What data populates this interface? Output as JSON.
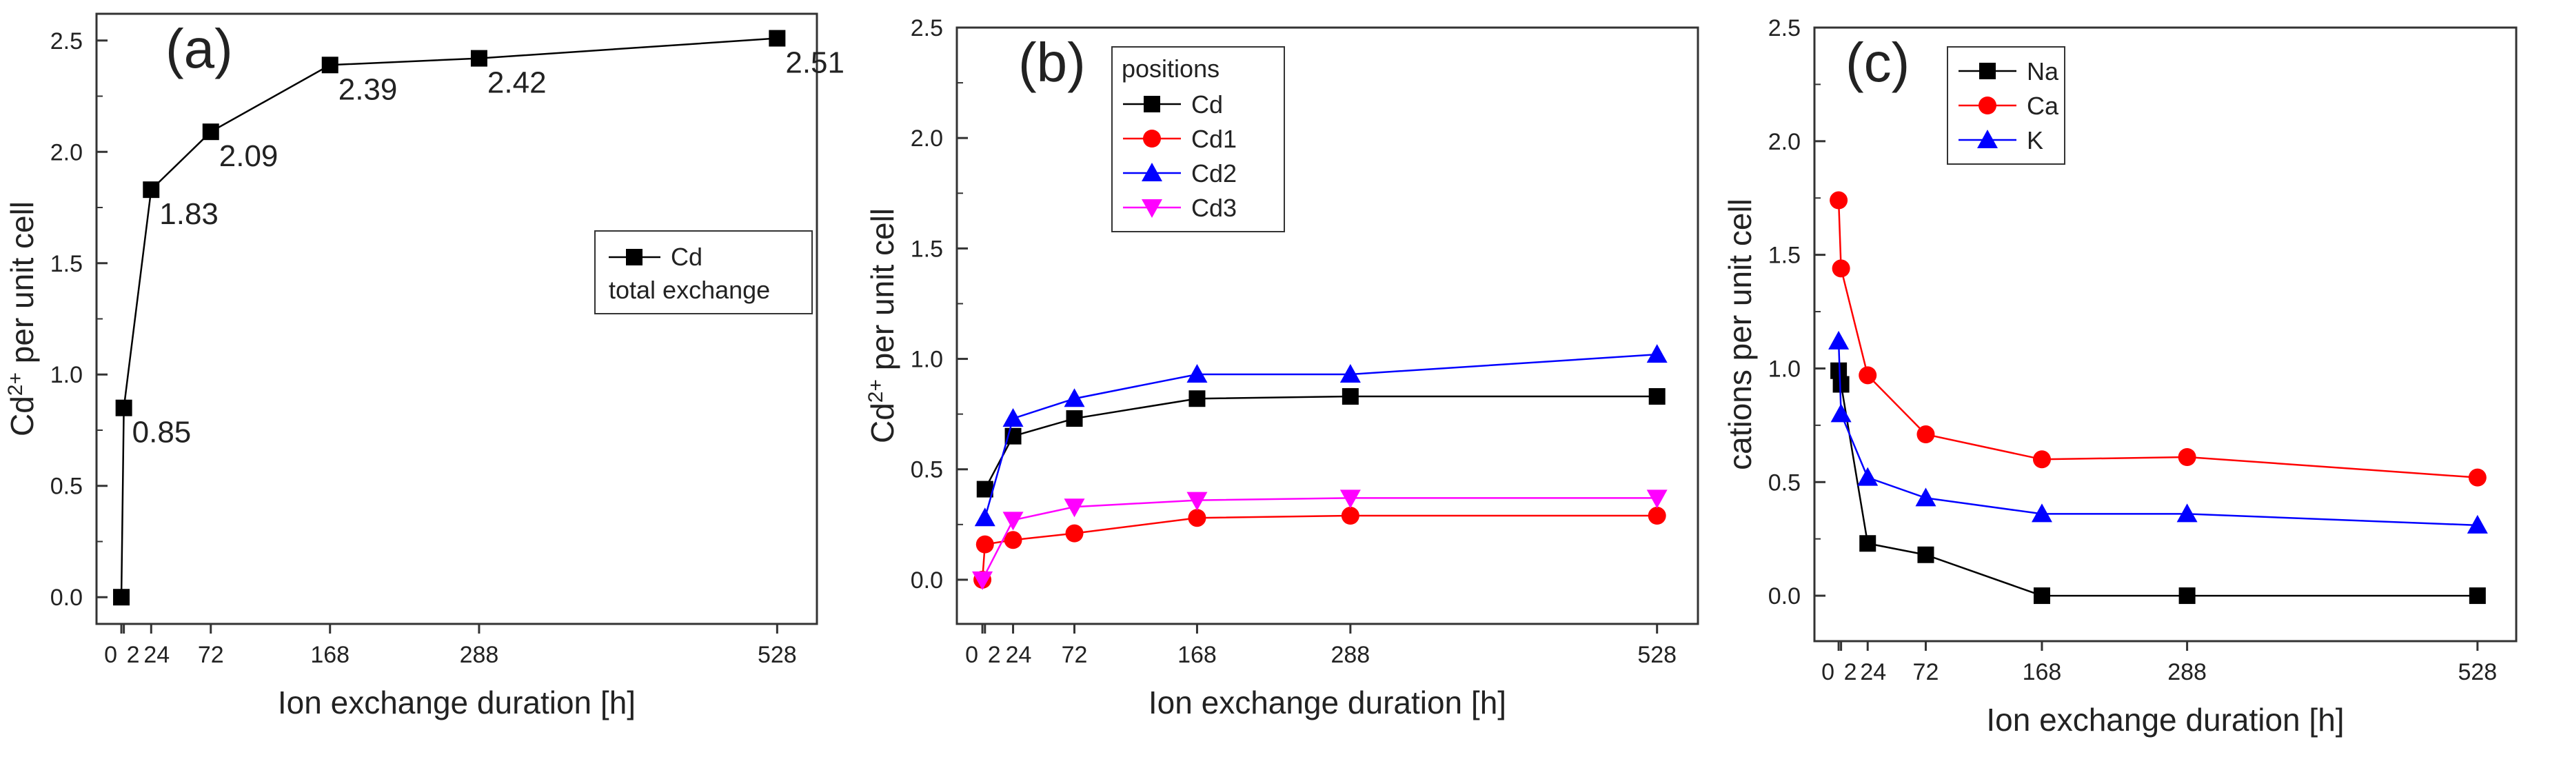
{
  "chart_data": [
    {
      "type": "line",
      "panel_label": "(a)",
      "xlabel": "Ion exchange duration [h]",
      "ylabel_main": "Cd",
      "ylabel_sup": "2+",
      "ylabel_rest": " per unit cell",
      "xticks": [
        0,
        2,
        24,
        72,
        168,
        288,
        528
      ],
      "xtick_labels": [
        "0",
        "2",
        "24",
        "72",
        "168",
        "288",
        "528"
      ],
      "yticks": [
        "0.0",
        "0.5",
        "1.0",
        "1.5",
        "2.0",
        "2.5"
      ],
      "xlim": [
        -20,
        560
      ],
      "ylim": [
        -0.12,
        2.62
      ],
      "legend_title": "",
      "legend_position": "center-right",
      "series": [
        {
          "name": "Cd",
          "color": "#000000",
          "marker": "square",
          "x": [
            0,
            2,
            24,
            72,
            168,
            288,
            528
          ],
          "values": [
            0.0,
            0.85,
            1.83,
            2.09,
            2.39,
            2.42,
            2.51
          ]
        }
      ],
      "legend_note": "total exchange",
      "data_labels": [
        "0.85",
        "1.83",
        "2.09",
        "2.39",
        "2.42",
        "2.51"
      ]
    },
    {
      "type": "line",
      "panel_label": "(b)",
      "xlabel": "Ion exchange duration [h]",
      "ylabel_main": "Cd",
      "ylabel_sup": "2+",
      "ylabel_rest": " per unit cell",
      "xticks": [
        0,
        2,
        24,
        72,
        168,
        288,
        528
      ],
      "xtick_labels": [
        "0",
        "2",
        "24",
        "72",
        "168",
        "288",
        "528"
      ],
      "yticks": [
        "0.0",
        "0.5",
        "1.0",
        "1.5",
        "2.0",
        "2.5"
      ],
      "xlim": [
        -20,
        560
      ],
      "ylim": [
        -0.2,
        2.5
      ],
      "legend_title": "positions",
      "legend_position": "top-left",
      "series": [
        {
          "name": "Cd",
          "color": "#000000",
          "marker": "square",
          "x": [
            2,
            24,
            72,
            168,
            288,
            528
          ],
          "values": [
            0.41,
            0.65,
            0.73,
            0.82,
            0.83,
            0.83
          ]
        },
        {
          "name": "Cd1",
          "color": "#ff0000",
          "marker": "circle",
          "x": [
            2,
            24,
            72,
            168,
            288,
            528
          ],
          "values": [
            0.16,
            0.18,
            0.21,
            0.28,
            0.29,
            0.29
          ]
        },
        {
          "name": "Cd2",
          "color": "#0000ff",
          "marker": "triangle-up",
          "x": [
            2,
            24,
            72,
            168,
            288,
            528
          ],
          "values": [
            0.28,
            0.73,
            0.82,
            0.93,
            0.93,
            1.02
          ]
        },
        {
          "name": "Cd3",
          "color": "#ff00ff",
          "marker": "triangle-down",
          "x": [
            24,
            72,
            168,
            288,
            528
          ],
          "values": [
            0.27,
            0.33,
            0.36,
            0.37,
            0.37
          ]
        }
      ],
      "start_points": [
        {
          "series": "Cd1",
          "x": 0,
          "y": 0.0
        },
        {
          "series": "Cd3",
          "x": 0,
          "y": 0.0
        }
      ]
    },
    {
      "type": "line",
      "panel_label": "(c)",
      "xlabel": "Ion exchange duration [h]",
      "ylabel_main": "cations per unit cell",
      "ylabel_sup": "",
      "ylabel_rest": "",
      "xticks": [
        0,
        2,
        24,
        72,
        168,
        288,
        528
      ],
      "xtick_labels": [
        "0",
        "2",
        "24",
        "72",
        "168",
        "288",
        "528"
      ],
      "yticks": [
        "0.0",
        "0.5",
        "1.0",
        "1.5",
        "2.0",
        "2.5"
      ],
      "xlim": [
        -20,
        560
      ],
      "ylim": [
        -0.2,
        2.5
      ],
      "legend_title": "",
      "legend_position": "top-left",
      "series": [
        {
          "name": "Na",
          "color": "#000000",
          "marker": "square",
          "x": [
            0,
            2,
            24,
            72,
            168,
            288,
            528
          ],
          "values": [
            0.99,
            0.93,
            0.23,
            0.18,
            0.0,
            0.0,
            0.0
          ]
        },
        {
          "name": "Ca",
          "color": "#ff0000",
          "marker": "circle",
          "x": [
            0,
            2,
            24,
            72,
            168,
            288,
            528
          ],
          "values": [
            1.74,
            1.44,
            0.97,
            0.71,
            0.6,
            0.61,
            0.52
          ]
        },
        {
          "name": "K",
          "color": "#0000ff",
          "marker": "triangle-up",
          "x": [
            0,
            2,
            24,
            72,
            168,
            288,
            528
          ],
          "values": [
            1.12,
            0.8,
            0.52,
            0.43,
            0.36,
            0.36,
            0.31
          ]
        }
      ]
    }
  ]
}
